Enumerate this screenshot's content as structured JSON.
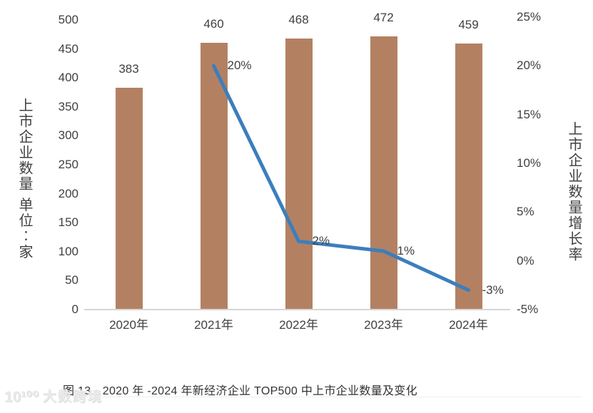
{
  "chart_data": {
    "type": "bar",
    "combo": "bar+line",
    "title": "图 13　2020 年 -2024 年新经济企业 TOP500 中上市企业数量及变化",
    "categories": [
      "2020年",
      "2021年",
      "2022年",
      "2023年",
      "2024年"
    ],
    "series": [
      {
        "name": "上市企业数量",
        "chart_type": "bar",
        "axis": "left",
        "color": "#b38162",
        "values": [
          383,
          460,
          468,
          472,
          459
        ],
        "data_labels": [
          "383",
          "460",
          "468",
          "472",
          "459"
        ]
      },
      {
        "name": "上市企业数量增长率",
        "chart_type": "line",
        "axis": "right",
        "color": "#3c7ebd",
        "values": [
          null,
          20,
          2,
          1,
          -3
        ],
        "data_labels": [
          null,
          "20%",
          "2%",
          "1%",
          "-3%"
        ]
      }
    ],
    "left_axis": {
      "title": "上市企业数量 单位︰家",
      "min": 0,
      "max": 500,
      "ticks": [
        "500",
        "450",
        "400",
        "350",
        "300",
        "250",
        "200",
        "150",
        "100",
        "50",
        "0"
      ]
    },
    "right_axis": {
      "title": "上市企业数量增长率",
      "min": -5,
      "max": 25,
      "ticks": [
        "25%",
        "20%",
        "15%",
        "10%",
        "5%",
        "0%",
        "-5%"
      ]
    },
    "grid": false,
    "legend": "none",
    "caption": "图 13　2020 年 -2024 年新经济企业 TOP500 中上市企业数量及变化"
  },
  "watermark": {
    "logo": "10¹⁰⁰",
    "text": "大数跨境"
  }
}
